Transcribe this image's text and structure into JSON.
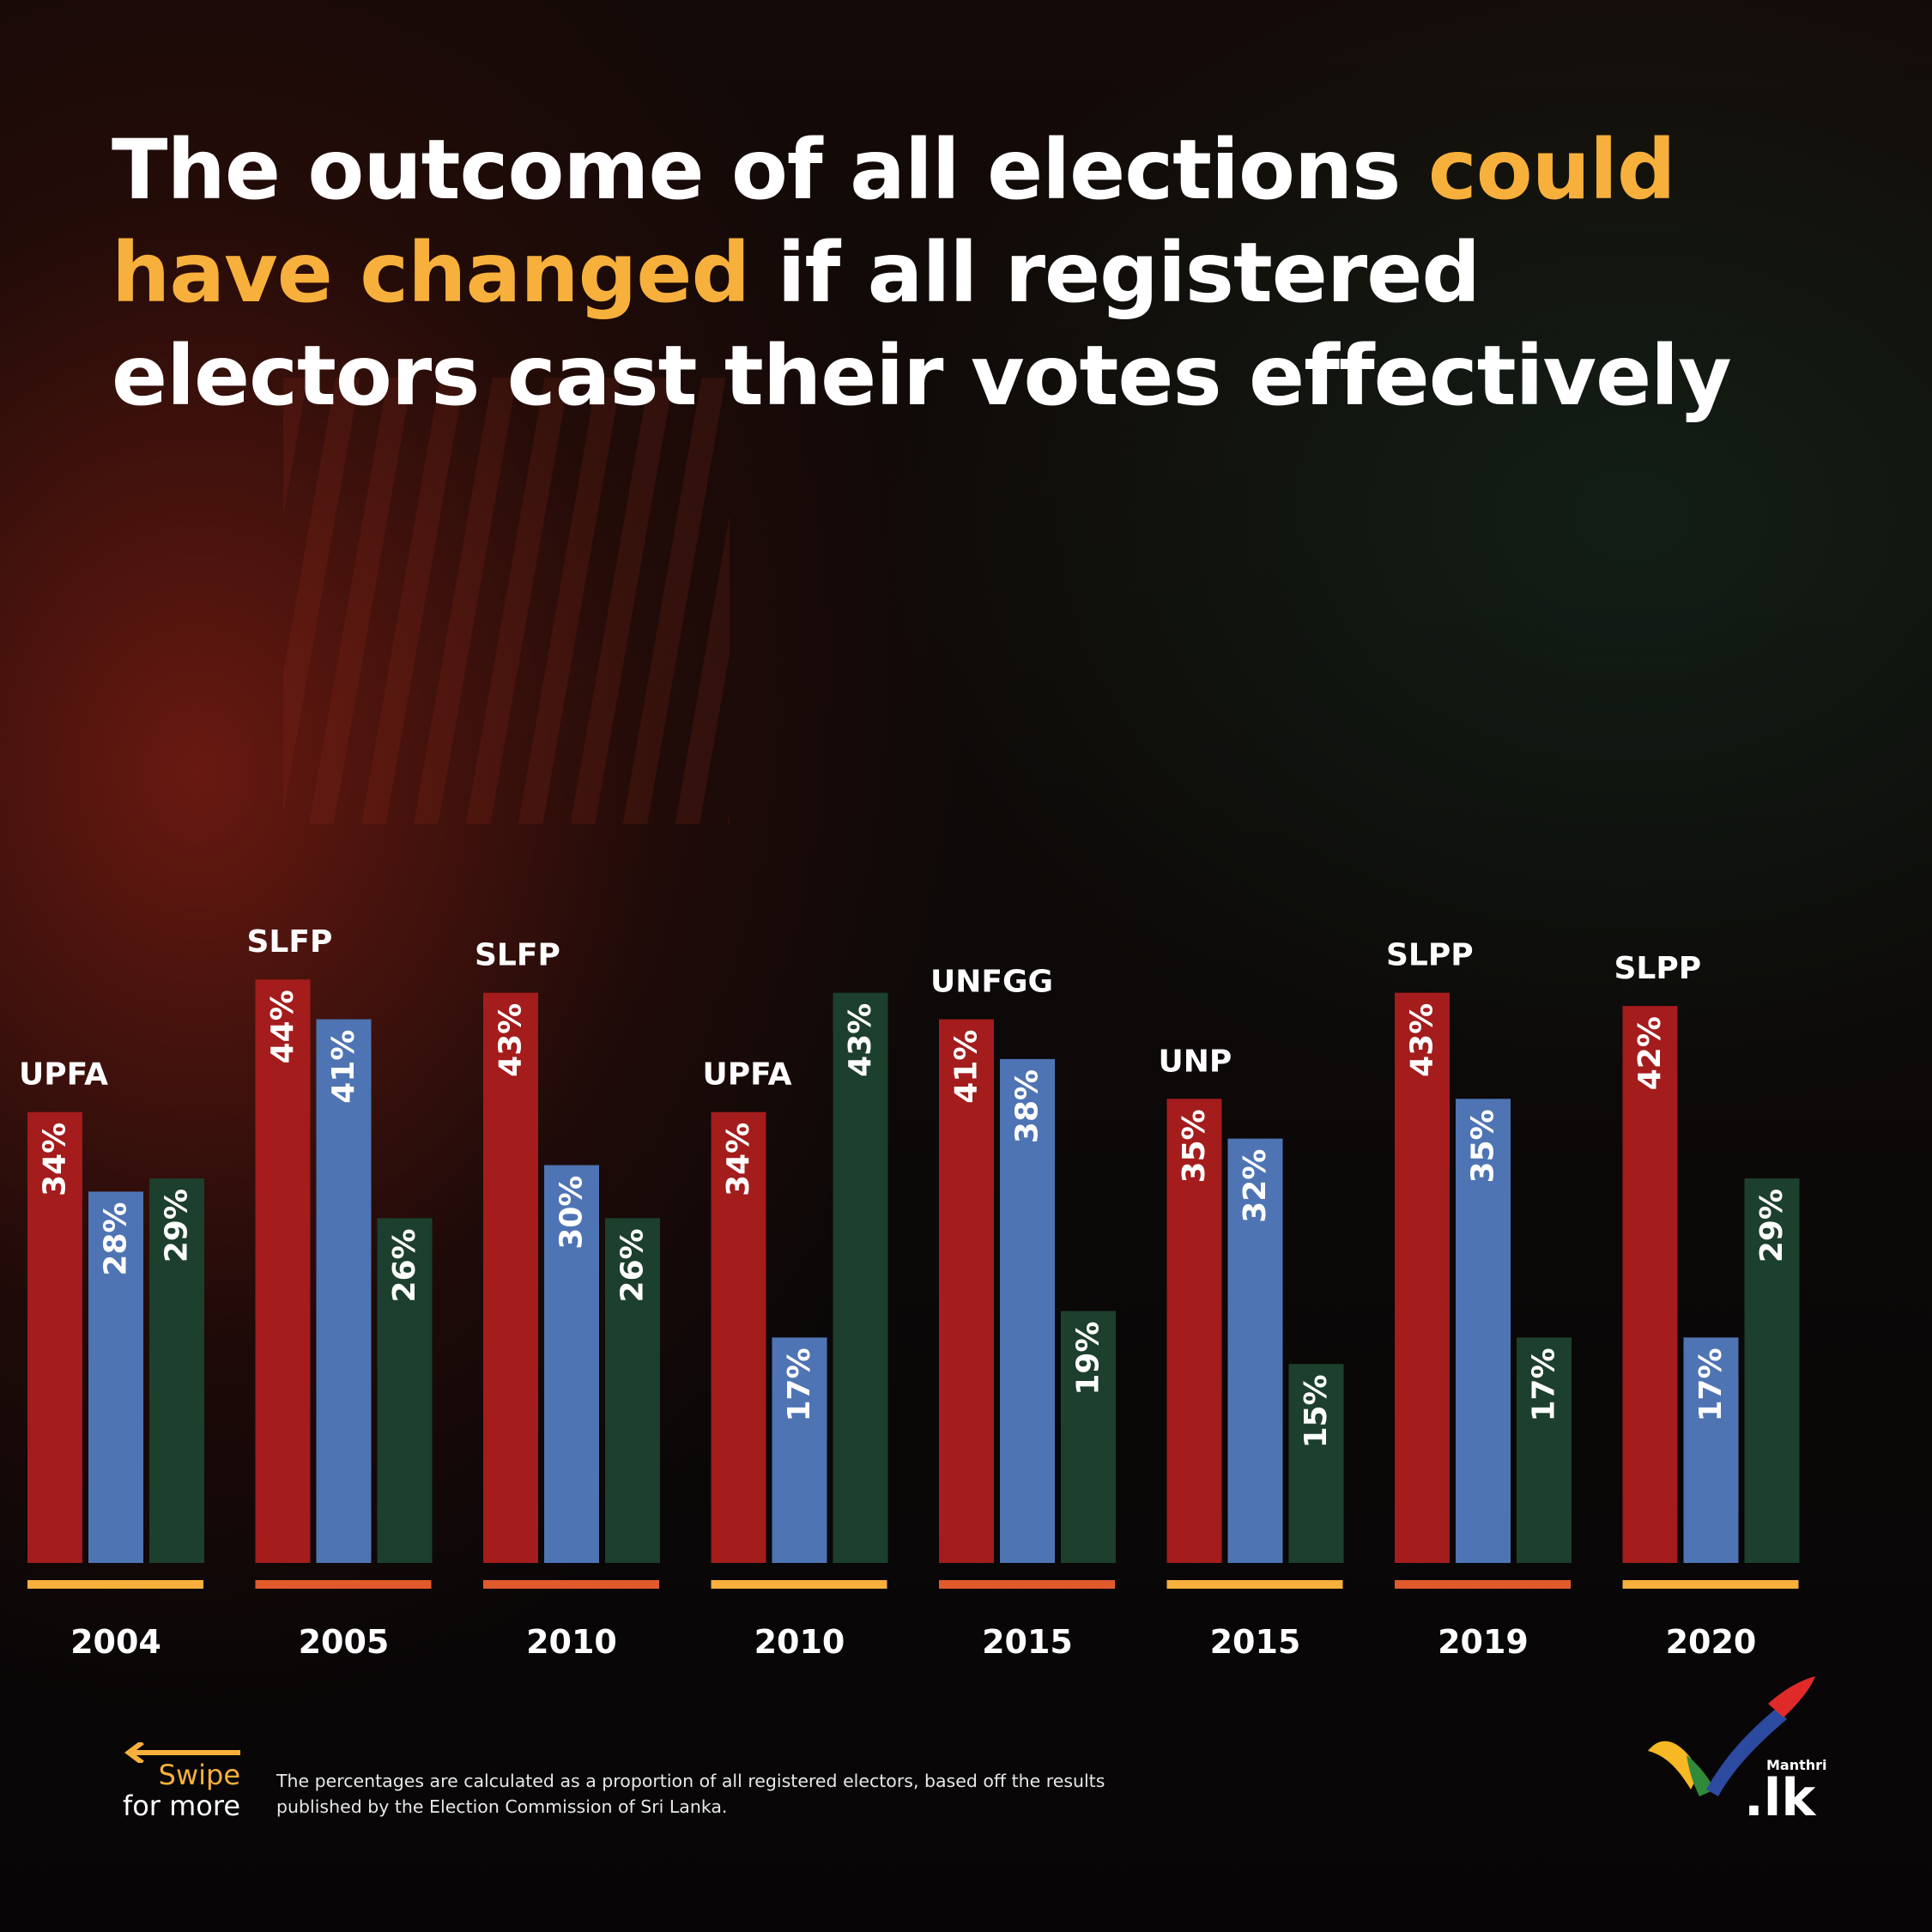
{
  "headline": {
    "part1": "The outcome of all elections ",
    "highlight1": "could",
    "highlight2": "have changed",
    "part2": " if all registered",
    "line3": "electors cast their votes effectively"
  },
  "colors": {
    "red_series": "#a41c1c",
    "blue_series": "#4e74b4",
    "green_series": "#1d3f2d",
    "accent_orange": "#f8b03c",
    "accent_red_orange": "#e25a2c",
    "text": "#ffffff"
  },
  "chart_data": {
    "type": "bar",
    "title": "",
    "xlabel": "",
    "ylabel": "",
    "ylim": [
      0,
      45
    ],
    "grid": false,
    "categories": [
      "2004",
      "2005",
      "2010",
      "2010",
      "2015",
      "2015",
      "2019",
      "2020"
    ],
    "winners": [
      "UPFA",
      "SLFP",
      "SLFP",
      "UPFA",
      "UNFGG",
      "UNP",
      "SLPP",
      "SLPP"
    ],
    "series": [
      {
        "color": "#a41c1c",
        "values": [
          34,
          44,
          43,
          34,
          41,
          35,
          43,
          42
        ],
        "labels": [
          "34%",
          "44%",
          "43%",
          "34%",
          "41%",
          "35%",
          "43%",
          "42%"
        ]
      },
      {
        "color": "#4e74b4",
        "values": [
          28,
          41,
          30,
          17,
          38,
          32,
          35,
          17
        ],
        "labels": [
          "28%",
          "41%",
          "30%",
          "17%",
          "38%",
          "32%",
          "35%",
          "17%"
        ]
      },
      {
        "color": "#1d3f2d",
        "values": [
          29,
          26,
          26,
          43,
          19,
          15,
          17,
          29
        ],
        "labels": [
          "29%",
          "26%",
          "26%",
          "43%",
          "19%",
          "15%",
          "17%",
          "29%"
        ]
      }
    ],
    "underline_colors": [
      "#f8b03c",
      "#e25a2c",
      "#e25a2c",
      "#f8b03c",
      "#e25a2c",
      "#f8b03c",
      "#e25a2c",
      "#f8b03c"
    ]
  },
  "swipe": {
    "line1": "Swipe",
    "line2": "for more",
    "icon": "arrow-left-icon"
  },
  "footnote": {
    "line1": "The percentages are calculated as a proportion of all registered electors, based off the results",
    "line2": "published by the Election Commission of Sri Lanka."
  },
  "logo": {
    "small_text": "Manthri",
    "big_text": ".lk",
    "icon": "checkmark-logo-icon"
  }
}
